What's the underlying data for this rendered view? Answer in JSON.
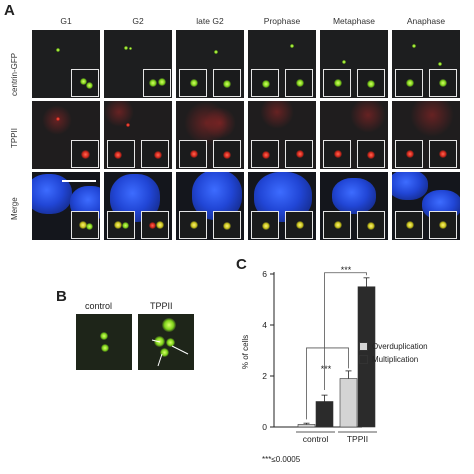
{
  "panel_a": {
    "letter": "A",
    "columns": [
      "G1",
      "G2",
      "late G2",
      "Prophase",
      "Metaphase",
      "Anaphase"
    ],
    "rows": [
      "centrin-GFP",
      "TPPII",
      "Merge"
    ]
  },
  "panel_b": {
    "letter": "B",
    "labels": [
      "control",
      "TPPII"
    ]
  },
  "panel_c": {
    "letter": "C",
    "chart_data": {
      "type": "bar",
      "categories": [
        "control",
        "TPPII"
      ],
      "series": [
        {
          "name": "Overduplication",
          "values": [
            0.1,
            1.9
          ],
          "errors": [
            0.05,
            0.3
          ],
          "color": "#d4d4d4"
        },
        {
          "name": "Multiplication",
          "values": [
            1.0,
            5.5
          ],
          "errors": [
            0.25,
            0.35
          ],
          "color": "#2b2b2b"
        }
      ],
      "ylabel": "% of cells",
      "ylim": [
        0,
        6
      ],
      "yticks": [
        "0",
        "2",
        "4",
        "6"
      ],
      "significance": "***",
      "footnote": "***≤0.0005",
      "legend_placement": "right"
    }
  },
  "colors": {
    "green_signal": "#7fd31a",
    "red_signal": "#d3261a",
    "dapi_blue": "#2146d6"
  }
}
